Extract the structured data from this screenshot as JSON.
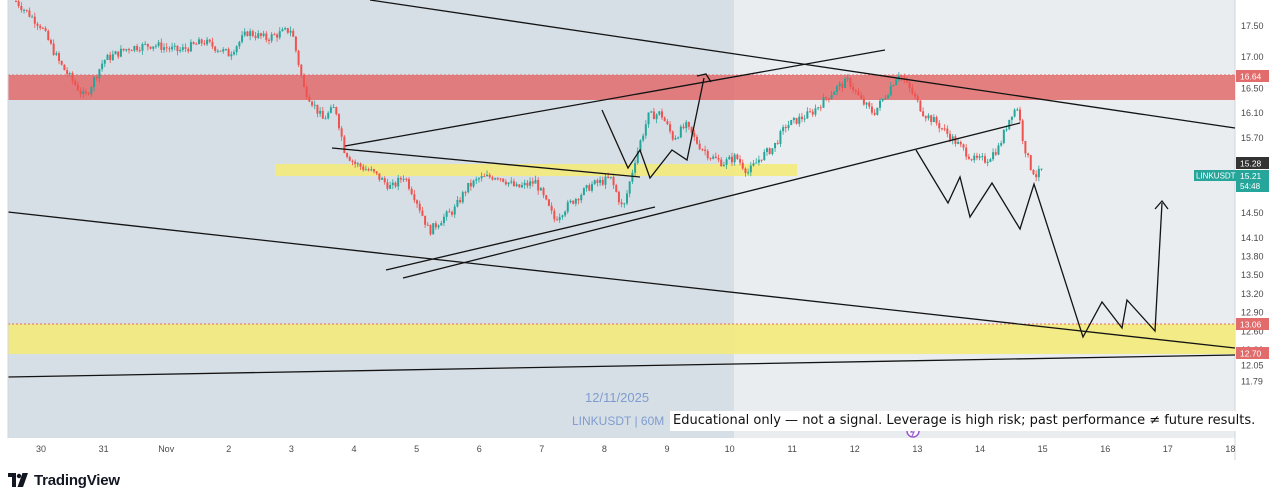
{
  "brand": {
    "name": "TradingView"
  },
  "watermark": {
    "date": "12/11/2025",
    "symbol_interval": "LINKUSDT | 60M"
  },
  "disclaimer": "Educational only — not a signal. Leverage is high risk; past performance ≠ future results.",
  "colors": {
    "candle_up": "#26a69a",
    "candle_down": "#ef5350",
    "resistance_zone": "#e26b6b",
    "support_zone": "#f3ea7a",
    "selection_shade": "#d7dfe6",
    "plot_background": "#e9edf0",
    "symbol_tag": "#26a69a",
    "line": "#131313"
  },
  "chart_data": {
    "type": "candlestick",
    "symbol": "LINKUSDT",
    "interval": "60",
    "x_axis": {
      "ticks": [
        "30",
        "31",
        "Nov",
        "2",
        "3",
        "4",
        "5",
        "6",
        "7",
        "8",
        "9",
        "10",
        "11",
        "12",
        "13",
        "14",
        "15",
        "16",
        "17",
        "18"
      ]
    },
    "y_axis": {
      "ticks": [
        17.5,
        17.0,
        16.5,
        16.1,
        15.7,
        15.28,
        14.5,
        14.1,
        13.8,
        13.5,
        13.2,
        12.9,
        12.6,
        12.3,
        12.05,
        11.79
      ],
      "range": [
        11.7,
        17.85
      ]
    },
    "price_tags": [
      {
        "value": "16.64",
        "color": "#e26b6b"
      },
      {
        "value": "15.28",
        "color": "#333333"
      },
      {
        "value": "13.06",
        "color": "#e26b6b"
      },
      {
        "value": "12.70",
        "color": "#e26b6b"
      }
    ],
    "symbol_tag": {
      "symbol": "LINKUSDT",
      "price": "15.21",
      "countdown": "54:48"
    },
    "zones": [
      {
        "name": "resistance",
        "from": 16.28,
        "to": 16.64
      },
      {
        "name": "mid-support",
        "from": 15.12,
        "to": 15.25
      },
      {
        "name": "demand",
        "from": 12.7,
        "to": 13.06
      }
    ],
    "price_path": [
      [
        29.6,
        17.9
      ],
      [
        30.0,
        17.5
      ],
      [
        30.3,
        16.9
      ],
      [
        30.7,
        16.35
      ],
      [
        31.0,
        16.95
      ],
      [
        31.4,
        17.15
      ],
      [
        31.8,
        17.2
      ],
      [
        32.2,
        17.1
      ],
      [
        32.6,
        17.25
      ],
      [
        33.0,
        17.05
      ],
      [
        33.3,
        17.4
      ],
      [
        33.6,
        17.3
      ],
      [
        34.0,
        17.45
      ],
      [
        34.2,
        16.5
      ],
      [
        34.5,
        16.0
      ],
      [
        34.7,
        16.2
      ],
      [
        34.85,
        15.5
      ],
      [
        35.0,
        15.3
      ],
      [
        35.3,
        15.15
      ],
      [
        35.6,
        14.9
      ],
      [
        35.8,
        15.1
      ],
      [
        36.0,
        14.7
      ],
      [
        36.2,
        14.2
      ],
      [
        36.4,
        14.4
      ],
      [
        36.6,
        14.55
      ],
      [
        36.8,
        14.9
      ],
      [
        37.0,
        15.05
      ],
      [
        37.3,
        15.1
      ],
      [
        37.6,
        14.9
      ],
      [
        37.9,
        15.0
      ],
      [
        38.2,
        14.4
      ],
      [
        38.5,
        14.7
      ],
      [
        38.8,
        14.95
      ],
      [
        39.1,
        15.05
      ],
      [
        39.3,
        14.55
      ],
      [
        39.5,
        15.4
      ],
      [
        39.7,
        16.05
      ],
      [
        39.9,
        16.1
      ],
      [
        40.1,
        15.7
      ],
      [
        40.3,
        15.9
      ],
      [
        40.5,
        15.6
      ],
      [
        40.7,
        15.4
      ],
      [
        40.9,
        15.3
      ],
      [
        41.1,
        15.4
      ],
      [
        41.3,
        15.15
      ],
      [
        41.5,
        15.4
      ],
      [
        41.7,
        15.55
      ],
      [
        41.9,
        15.9
      ],
      [
        42.1,
        16.0
      ],
      [
        42.3,
        16.1
      ],
      [
        42.5,
        16.3
      ],
      [
        42.7,
        16.5
      ],
      [
        42.9,
        16.62
      ],
      [
        43.1,
        16.3
      ],
      [
        43.3,
        16.1
      ],
      [
        43.5,
        16.4
      ],
      [
        43.7,
        16.75
      ],
      [
        43.9,
        16.45
      ],
      [
        44.1,
        16.1
      ],
      [
        44.3,
        15.95
      ],
      [
        44.5,
        15.75
      ],
      [
        44.7,
        15.55
      ],
      [
        44.9,
        15.35
      ],
      [
        45.1,
        15.35
      ],
      [
        45.3,
        15.55
      ],
      [
        45.5,
        16.1
      ],
      [
        45.6,
        16.2
      ],
      [
        45.7,
        15.6
      ],
      [
        45.8,
        15.25
      ],
      [
        45.9,
        15.1
      ],
      [
        46.0,
        15.2
      ]
    ]
  }
}
